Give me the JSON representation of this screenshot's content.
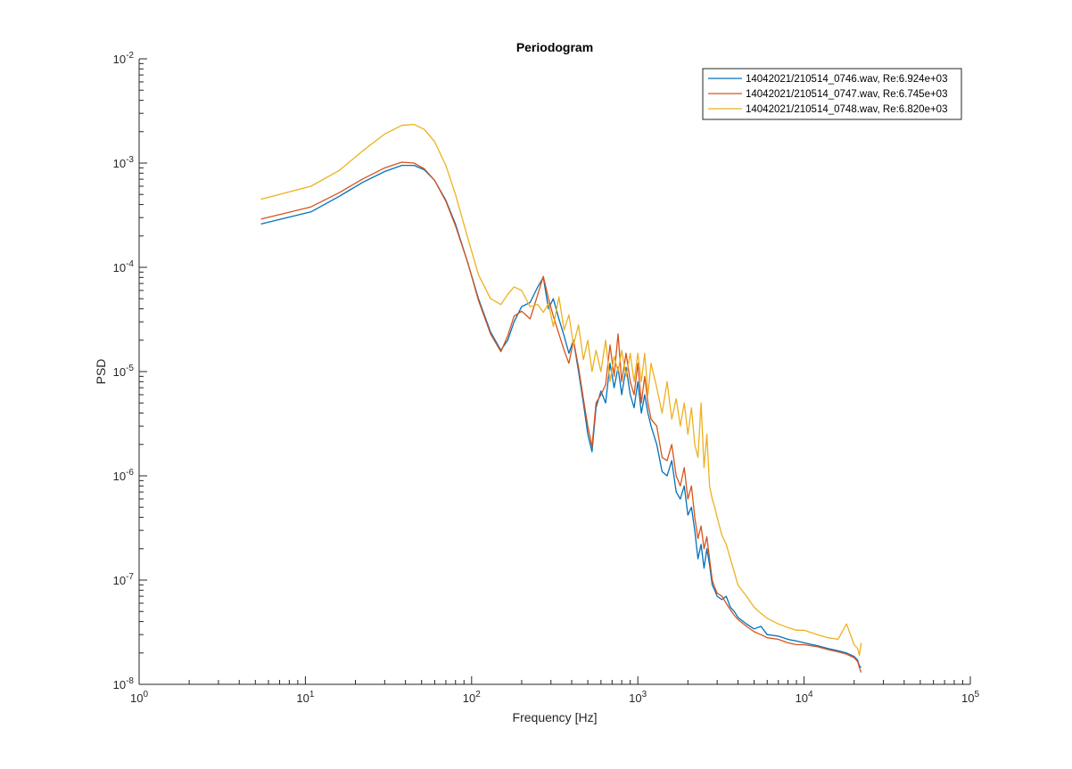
{
  "chart_data": {
    "type": "line",
    "title": "Periodogram",
    "xlabel": "Frequency [Hz]",
    "ylabel": "PSD",
    "xscale": "log",
    "yscale": "log",
    "xlim": [
      1,
      100000
    ],
    "ylim": [
      1e-08,
      0.01
    ],
    "grid": false,
    "legend_position": "top-right",
    "x_ticks": [
      {
        "value": 1,
        "base": "10",
        "exp": "0"
      },
      {
        "value": 10,
        "base": "10",
        "exp": "1"
      },
      {
        "value": 100,
        "base": "10",
        "exp": "2"
      },
      {
        "value": 1000,
        "base": "10",
        "exp": "3"
      },
      {
        "value": 10000,
        "base": "10",
        "exp": "4"
      },
      {
        "value": 100000,
        "base": "10",
        "exp": "5"
      }
    ],
    "y_ticks": [
      {
        "value": 1e-08,
        "base": "10",
        "exp": "-8"
      },
      {
        "value": 1e-07,
        "base": "10",
        "exp": "-7"
      },
      {
        "value": 1e-06,
        "base": "10",
        "exp": "-6"
      },
      {
        "value": 1e-05,
        "base": "10",
        "exp": "-5"
      },
      {
        "value": 0.0001,
        "base": "10",
        "exp": "-4"
      },
      {
        "value": 0.001,
        "base": "10",
        "exp": "-3"
      },
      {
        "value": 0.01,
        "base": "10",
        "exp": "-2"
      }
    ],
    "series": [
      {
        "name": "14042021/210514_0746.wav, Re:6.924e+03",
        "color": "#0072BD",
        "x": [
          5.4,
          10.8,
          16,
          22,
          30,
          38,
          45,
          52,
          60,
          70,
          80,
          95,
          110,
          130,
          150,
          165,
          180,
          200,
          225,
          250,
          270,
          290,
          310,
          335,
          360,
          385,
          410,
          440,
          470,
          500,
          530,
          560,
          600,
          640,
          680,
          720,
          760,
          800,
          850,
          900,
          950,
          1000,
          1050,
          1100,
          1150,
          1200,
          1300,
          1400,
          1500,
          1600,
          1700,
          1800,
          1900,
          2000,
          2100,
          2200,
          2300,
          2400,
          2500,
          2600,
          2700,
          2800,
          2900,
          3000,
          3200,
          3400,
          3600,
          3800,
          4000,
          4500,
          5000,
          5500,
          6000,
          7000,
          8000,
          9000,
          10000,
          12000,
          14000,
          16000,
          18000,
          20000,
          21000,
          21500,
          22050
        ],
        "y": [
          0.00026,
          0.00034,
          0.00048,
          0.00065,
          0.00083,
          0.00095,
          0.00095,
          0.00086,
          0.00068,
          0.00044,
          0.00026,
          0.00011,
          5e-05,
          2.4e-05,
          1.6e-05,
          2e-05,
          3e-05,
          4.2e-05,
          4.6e-05,
          6.5e-05,
          8e-05,
          4e-05,
          5e-05,
          3.2e-05,
          2.2e-05,
          1.5e-05,
          2e-05,
          1e-05,
          5e-06,
          2.5e-06,
          1.7e-06,
          4.5e-06,
          6.5e-06,
          5e-06,
          1.2e-05,
          7e-06,
          1.1e-05,
          6e-06,
          1.1e-05,
          6e-06,
          4.5e-06,
          8e-06,
          4e-06,
          6e-06,
          4e-06,
          3e-06,
          2e-06,
          1.1e-06,
          1e-06,
          1.4e-06,
          7e-07,
          6e-07,
          8e-07,
          4.2e-07,
          5e-07,
          3e-07,
          1.6e-07,
          2.2e-07,
          1.3e-07,
          2e-07,
          1.4e-07,
          9e-08,
          8e-08,
          7e-08,
          6.5e-08,
          7e-08,
          5.5e-08,
          5e-08,
          4.4e-08,
          3.8e-08,
          3.4e-08,
          3.6e-08,
          3e-08,
          2.9e-08,
          2.7e-08,
          2.6e-08,
          2.5e-08,
          2.35e-08,
          2.2e-08,
          2.1e-08,
          2e-08,
          1.85e-08,
          1.7e-08,
          1.5e-08,
          1.45e-08
        ]
      },
      {
        "name": "14042021/210514_0747.wav, Re:6.745e+03",
        "color": "#D95319",
        "x": [
          5.4,
          10.8,
          16,
          22,
          30,
          38,
          45,
          52,
          60,
          70,
          80,
          95,
          110,
          130,
          150,
          165,
          180,
          200,
          225,
          250,
          270,
          290,
          310,
          335,
          360,
          385,
          410,
          440,
          470,
          500,
          530,
          560,
          600,
          640,
          680,
          720,
          760,
          800,
          850,
          900,
          950,
          1000,
          1050,
          1100,
          1150,
          1200,
          1300,
          1400,
          1500,
          1600,
          1700,
          1800,
          1900,
          2000,
          2100,
          2200,
          2300,
          2400,
          2500,
          2600,
          2700,
          2800,
          2900,
          3000,
          3200,
          3400,
          3600,
          3800,
          4000,
          4500,
          5000,
          5500,
          6000,
          7000,
          8000,
          9000,
          10000,
          12000,
          14000,
          16000,
          18000,
          20000,
          21000,
          21500,
          22050
        ],
        "y": [
          0.00029,
          0.00038,
          0.00052,
          0.0007,
          0.0009,
          0.00102,
          0.001,
          0.00088,
          0.00068,
          0.00043,
          0.00025,
          0.00011,
          4.8e-05,
          2.3e-05,
          1.55e-05,
          2.2e-05,
          3.4e-05,
          3.8e-05,
          3.2e-05,
          5.5e-05,
          8.2e-05,
          5e-05,
          3.4e-05,
          2.3e-05,
          1.6e-05,
          1.2e-05,
          2e-05,
          1.1e-05,
          5.5e-06,
          3e-06,
          1.9e-06,
          5e-06,
          6e-06,
          7.5e-06,
          1.8e-05,
          9e-06,
          2.3e-05,
          8e-06,
          1.5e-05,
          8e-06,
          6e-06,
          1.2e-05,
          5e-06,
          9e-06,
          5e-06,
          3.5e-06,
          3e-06,
          1.5e-06,
          1.4e-06,
          2e-06,
          1e-06,
          8e-07,
          1.2e-06,
          6e-07,
          8e-07,
          4e-07,
          2.5e-07,
          3.3e-07,
          2e-07,
          2.6e-07,
          1.6e-07,
          1e-07,
          8.5e-08,
          7.5e-08,
          7e-08,
          6e-08,
          5.2e-08,
          4.6e-08,
          4.2e-08,
          3.6e-08,
          3.2e-08,
          3e-08,
          2.8e-08,
          2.7e-08,
          2.5e-08,
          2.4e-08,
          2.4e-08,
          2.3e-08,
          2.15e-08,
          2.05e-08,
          1.95e-08,
          1.8e-08,
          1.65e-08,
          1.45e-08,
          1.3e-08
        ]
      },
      {
        "name": "14042021/210514_0748.wav, Re:6.820e+03",
        "color": "#EDB120",
        "x": [
          5.4,
          10.8,
          16,
          22,
          30,
          38,
          45,
          52,
          60,
          70,
          80,
          95,
          110,
          130,
          150,
          165,
          180,
          200,
          225,
          250,
          270,
          290,
          310,
          335,
          360,
          385,
          410,
          440,
          470,
          500,
          530,
          560,
          600,
          640,
          680,
          720,
          760,
          800,
          850,
          900,
          950,
          1000,
          1050,
          1100,
          1150,
          1200,
          1300,
          1400,
          1500,
          1600,
          1700,
          1800,
          1900,
          2000,
          2100,
          2200,
          2300,
          2400,
          2500,
          2600,
          2700,
          2800,
          2900,
          3000,
          3200,
          3400,
          3600,
          3800,
          4000,
          4500,
          5000,
          5500,
          6000,
          7000,
          8000,
          9000,
          10000,
          12000,
          14000,
          16000,
          18000,
          20000,
          21000,
          21500,
          22050
        ],
        "y": [
          0.00045,
          0.0006,
          0.00085,
          0.0013,
          0.0019,
          0.0023,
          0.00235,
          0.0021,
          0.0016,
          0.00095,
          0.0005,
          0.00019,
          8.5e-05,
          5e-05,
          4.4e-05,
          5.5e-05,
          6.5e-05,
          6e-05,
          4.2e-05,
          4.4e-05,
          3.7e-05,
          4.5e-05,
          2.7e-05,
          5.2e-05,
          2.5e-05,
          3.5e-05,
          1.8e-05,
          2.8e-05,
          1.3e-05,
          2e-05,
          1e-05,
          1.6e-05,
          1e-05,
          2e-05,
          8e-06,
          1.4e-05,
          1e-05,
          1.6e-05,
          9e-06,
          1.5e-05,
          8e-06,
          1.5e-05,
          8e-06,
          1.5e-05,
          6e-06,
          1.2e-05,
          7e-06,
          4e-06,
          8e-06,
          3.5e-06,
          5.5e-06,
          3e-06,
          5e-06,
          2.5e-06,
          4.5e-06,
          2e-06,
          1.5e-06,
          5e-06,
          1.2e-06,
          2.5e-06,
          8e-07,
          6e-07,
          5e-07,
          4e-07,
          2.7e-07,
          2.2e-07,
          1.6e-07,
          1.2e-07,
          9e-08,
          7e-08,
          5.5e-08,
          4.8e-08,
          4.3e-08,
          3.8e-08,
          3.5e-08,
          3.3e-08,
          3.3e-08,
          3e-08,
          2.8e-08,
          2.7e-08,
          3.8e-08,
          2.4e-08,
          2.2e-08,
          1.9e-08,
          2.5e-08
        ]
      }
    ]
  }
}
